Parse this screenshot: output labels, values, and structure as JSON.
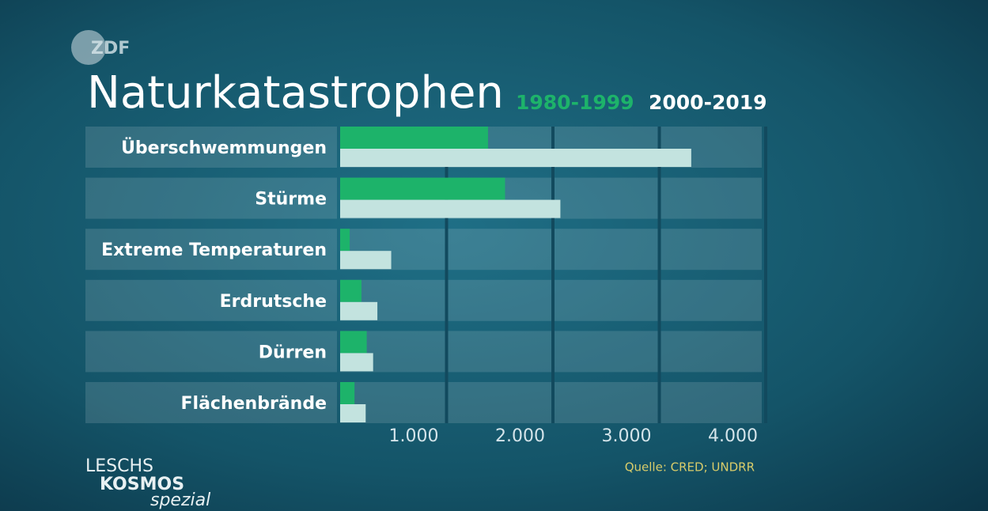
{
  "logo": "ZDF",
  "branding": {
    "line1": "LESCHS",
    "line2": "KOSMOS",
    "line3": "spezial"
  },
  "chart_data": {
    "type": "hbar",
    "title": "Naturkatastrophen",
    "categories": [
      "Überschwemmungen",
      "Stürme",
      "Extreme Temperaturen",
      "Erdrutsche",
      "Dürren",
      "Flächenbrände"
    ],
    "series": [
      {
        "name": "1980-1999",
        "color": "#1db36a",
        "values": [
          1390,
          1550,
          90,
          200,
          250,
          135
        ]
      },
      {
        "name": "2000-2019",
        "color": "#c3e3df",
        "values": [
          3300,
          2070,
          480,
          350,
          310,
          240
        ]
      }
    ],
    "xlim": [
      0,
      4000
    ],
    "xticks": [
      {
        "value": 1000,
        "label": "1.000"
      },
      {
        "value": 2000,
        "label": "2.000"
      },
      {
        "value": 3000,
        "label": "3.000"
      },
      {
        "value": 4000,
        "label": "4.000"
      }
    ],
    "grid": true,
    "source": "Quelle: CRED; UNDRR"
  }
}
